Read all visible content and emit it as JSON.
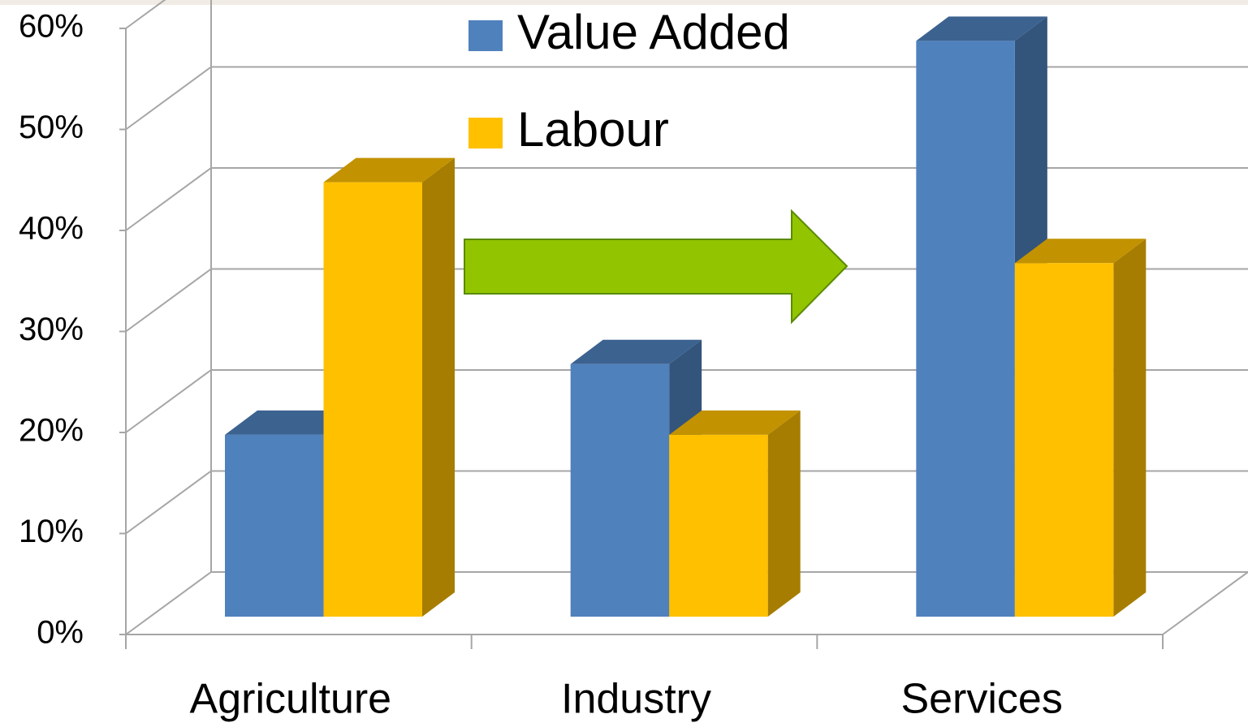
{
  "chart_data": {
    "type": "bar3d",
    "categories": [
      "Agriculture",
      "Industry",
      "Services"
    ],
    "series": [
      {
        "name": "Value Added",
        "color": "#4f81bd",
        "values": [
          18,
          25,
          57
        ]
      },
      {
        "name": "Labour",
        "color": "#ffc000",
        "values": [
          43,
          18,
          35
        ]
      }
    ],
    "ylim": [
      0,
      60
    ],
    "yticks": [
      {
        "value": 0,
        "label": "0%"
      },
      {
        "value": 10,
        "label": "10%"
      },
      {
        "value": 20,
        "label": "20%"
      },
      {
        "value": 30,
        "label": "30%"
      },
      {
        "value": 40,
        "label": "40%"
      },
      {
        "value": 50,
        "label": "50%"
      },
      {
        "value": 60,
        "label": "60%"
      }
    ],
    "grid": true,
    "legend": "top"
  }
}
